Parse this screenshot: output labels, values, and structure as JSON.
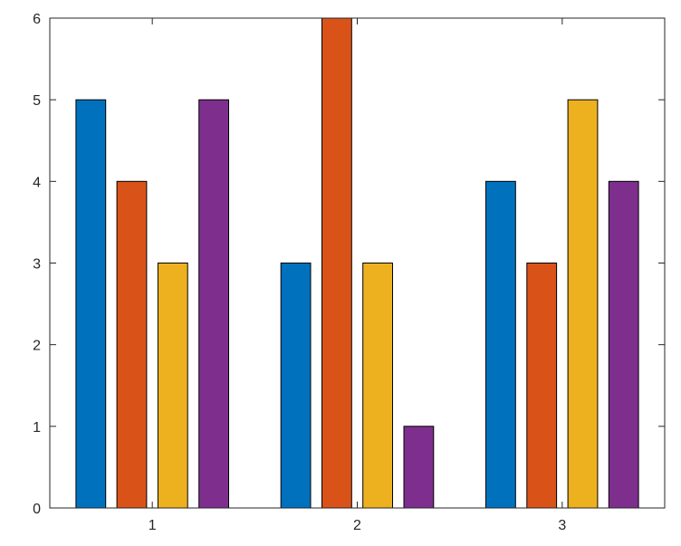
{
  "chart_data": {
    "type": "bar",
    "categories": [
      "1",
      "2",
      "3"
    ],
    "series": [
      {
        "values": [
          5,
          3,
          4
        ],
        "color": "#0072BD"
      },
      {
        "values": [
          4,
          6,
          3
        ],
        "color": "#D95319"
      },
      {
        "values": [
          3,
          3,
          5
        ],
        "color": "#EDB120"
      },
      {
        "values": [
          5,
          1,
          4
        ],
        "color": "#7E2F8E"
      }
    ],
    "ylim": [
      0,
      6
    ],
    "yticks": [
      0,
      1,
      2,
      3,
      4,
      5,
      6
    ],
    "xlabel": "",
    "ylabel": "",
    "title": "",
    "grid": false,
    "legend": "none",
    "axis_color": "#262626",
    "bar_edge_color": "#000000"
  }
}
